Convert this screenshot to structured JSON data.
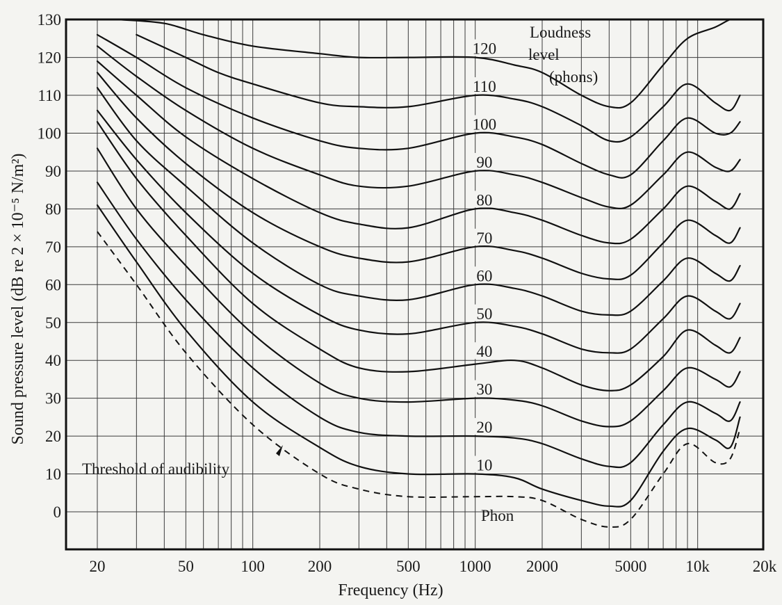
{
  "chart_data": {
    "type": "line",
    "title": "",
    "xlabel": "Frequency (Hz)",
    "ylabel": "Sound pressure level (dB re 2 × 10⁻⁵ N/m²)",
    "x_scale": "log",
    "x_ticks": [
      {
        "value": 20,
        "label": "20"
      },
      {
        "value": 50,
        "label": "50"
      },
      {
        "value": 100,
        "label": "100"
      },
      {
        "value": 200,
        "label": "200"
      },
      {
        "value": 500,
        "label": "500"
      },
      {
        "value": 1000,
        "label": "1000"
      },
      {
        "value": 2000,
        "label": "2000"
      },
      {
        "value": 5000,
        "label": "5000"
      },
      {
        "value": 10000,
        "label": "10k"
      },
      {
        "value": 20000,
        "label": "20k"
      }
    ],
    "y_ticks": [
      0,
      10,
      20,
      30,
      40,
      50,
      60,
      70,
      80,
      90,
      100,
      110,
      120,
      130
    ],
    "ylim": [
      -10,
      130
    ],
    "grid": true,
    "legend_title": [
      "Loudness",
      "level",
      "(phons)"
    ],
    "threshold_label": "Threshold of audibility",
    "zero_curve_label": "Phon",
    "series": [
      {
        "name": "10",
        "x": [
          20,
          30,
          50,
          100,
          200,
          300,
          500,
          1000,
          1500,
          2000,
          3000,
          4000,
          5000,
          7000,
          9000,
          12000,
          14000,
          15500
        ],
        "y": [
          81,
          66,
          48,
          29,
          17,
          12,
          10,
          10,
          9,
          6,
          3,
          1.5,
          3,
          16,
          22,
          19,
          17,
          25
        ]
      },
      {
        "name": "20",
        "x": [
          20,
          30,
          50,
          100,
          200,
          300,
          500,
          1000,
          1500,
          2000,
          3000,
          4000,
          5000,
          7000,
          9000,
          12000,
          14000,
          15500
        ],
        "y": [
          87,
          72,
          56,
          38,
          25,
          21,
          20,
          20,
          19.5,
          18,
          14,
          12,
          13,
          23,
          29,
          26,
          24,
          29
        ]
      },
      {
        "name": "30",
        "x": [
          20,
          30,
          50,
          100,
          200,
          300,
          500,
          1000,
          1500,
          2000,
          3000,
          4000,
          5000,
          7000,
          9000,
          12000,
          14000,
          15500
        ],
        "y": [
          96,
          80,
          65,
          47,
          34,
          30,
          29,
          30,
          29.5,
          28,
          24,
          22.5,
          24,
          32,
          38,
          35,
          33,
          37
        ]
      },
      {
        "name": "40",
        "x": [
          20,
          30,
          50,
          100,
          200,
          300,
          500,
          1000,
          1500,
          2000,
          3000,
          4000,
          5000,
          7000,
          9000,
          12000,
          14000,
          15500
        ],
        "y": [
          103,
          88,
          73,
          55,
          43,
          38,
          37,
          39,
          40,
          38,
          33.5,
          32,
          33.5,
          41,
          48,
          44,
          42,
          46
        ]
      },
      {
        "name": "50",
        "x": [
          20,
          30,
          50,
          100,
          200,
          300,
          500,
          1000,
          1500,
          2000,
          3000,
          4000,
          5000,
          7000,
          9000,
          12000,
          14000,
          15500
        ],
        "y": [
          106,
          93,
          79,
          63,
          52,
          48,
          47,
          50,
          49,
          47,
          43,
          42,
          43,
          51,
          57,
          53,
          51,
          55
        ]
      },
      {
        "name": "60",
        "x": [
          20,
          30,
          50,
          100,
          200,
          300,
          500,
          1000,
          1500,
          2000,
          3000,
          4000,
          5000,
          7000,
          9000,
          12000,
          14000,
          15500
        ],
        "y": [
          112,
          98,
          86,
          71,
          60,
          57,
          56,
          60,
          59,
          57,
          53,
          52,
          53,
          61,
          67,
          63,
          61,
          65
        ]
      },
      {
        "name": "70",
        "x": [
          20,
          30,
          50,
          100,
          200,
          300,
          500,
          1000,
          1500,
          2000,
          3000,
          4000,
          5000,
          7000,
          9000,
          12000,
          14000,
          15500
        ],
        "y": [
          116,
          104,
          92,
          79,
          70,
          67,
          66,
          70,
          69,
          67,
          63,
          61.5,
          62.5,
          71,
          77,
          73,
          71,
          75
        ]
      },
      {
        "name": "80",
        "x": [
          20,
          30,
          50,
          100,
          200,
          300,
          500,
          1000,
          1500,
          2000,
          3000,
          4000,
          5000,
          7000,
          9000,
          12000,
          14000,
          15500
        ],
        "y": [
          119,
          110,
          99,
          88,
          79,
          76,
          75,
          80,
          79,
          77,
          73,
          71,
          72,
          80,
          86,
          82,
          80,
          84
        ]
      },
      {
        "name": "90",
        "x": [
          20,
          30,
          50,
          100,
          200,
          300,
          500,
          1000,
          1500,
          2000,
          3000,
          4000,
          5000,
          7000,
          9000,
          12000,
          14000,
          15500
        ],
        "y": [
          123,
          115,
          106,
          96,
          89,
          86,
          86,
          90,
          89,
          87,
          83,
          80.5,
          81,
          89,
          95,
          91,
          90,
          93
        ]
      },
      {
        "name": "100",
        "x": [
          20,
          30,
          50,
          100,
          200,
          300,
          500,
          1000,
          1500,
          2000,
          3000,
          4000,
          5000,
          7000,
          9000,
          12000,
          14000,
          15500
        ],
        "y": [
          126,
          120,
          112,
          104,
          98,
          96,
          96,
          100,
          99,
          97,
          92,
          89,
          89,
          98,
          104,
          100,
          100,
          103
        ]
      },
      {
        "name": "110",
        "x": [
          30,
          50,
          70,
          100,
          200,
          300,
          500,
          1000,
          1500,
          2000,
          3000,
          4000,
          5000,
          7000,
          9000,
          12000,
          14000,
          15500
        ],
        "y": [
          126,
          120,
          116,
          113,
          108,
          107,
          107,
          110,
          109,
          107,
          102,
          98,
          99,
          107,
          113,
          108,
          106,
          110
        ]
      },
      {
        "name": "120",
        "x": [
          25,
          40,
          60,
          100,
          200,
          300,
          500,
          1000,
          1500,
          2000,
          3000,
          4000,
          5000,
          7000,
          9000,
          12000,
          14000,
          15500
        ],
        "y": [
          130,
          129,
          126,
          123,
          121,
          120,
          120,
          120,
          118,
          116,
          110,
          107,
          108,
          118,
          125,
          128,
          130,
          130
        ]
      },
      {
        "name": "Threshold of audibility",
        "x": [
          20,
          30,
          50,
          100,
          200,
          300,
          500,
          1000,
          1500,
          2000,
          3000,
          4000,
          5000,
          7000,
          9000,
          12000,
          14000,
          15500
        ],
        "y": [
          74,
          60,
          42,
          23,
          10,
          6,
          4,
          4,
          4,
          3,
          -2,
          -4,
          -2,
          10,
          18,
          13,
          14,
          22
        ]
      }
    ],
    "curve_labels": [
      {
        "value": 120,
        "text": "120"
      },
      {
        "value": 110,
        "text": "110"
      },
      {
        "value": 100,
        "text": "100"
      },
      {
        "value": 90,
        "text": "90"
      },
      {
        "value": 80,
        "text": "80"
      },
      {
        "value": 70,
        "text": "70"
      },
      {
        "value": 60,
        "text": "60"
      },
      {
        "value": 50,
        "text": "50"
      },
      {
        "value": 40,
        "text": "40"
      },
      {
        "value": 30,
        "text": "30"
      },
      {
        "value": 20,
        "text": "20"
      },
      {
        "value": 10,
        "text": "10"
      }
    ]
  }
}
